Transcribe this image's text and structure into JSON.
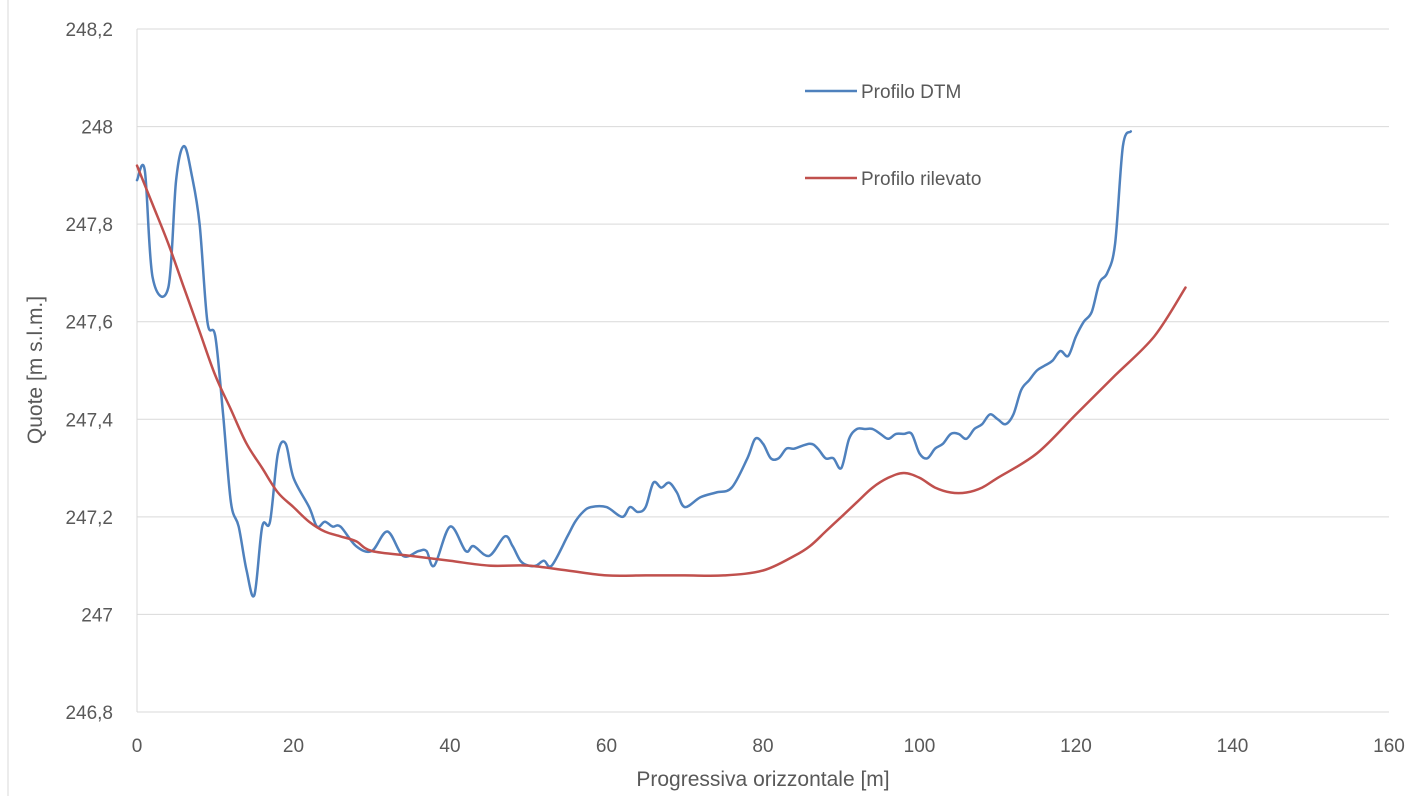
{
  "chart_data": {
    "type": "line",
    "title": "",
    "xlabel": "Progressiva orizzontale [m]",
    "ylabel": "Quote [m s.l.m.]",
    "xlim": [
      0,
      160
    ],
    "ylim": [
      246.8,
      248.2
    ],
    "x_ticks": [
      0,
      20,
      40,
      60,
      80,
      100,
      120,
      140,
      160
    ],
    "y_ticks": [
      246.8,
      247.0,
      247.2,
      247.4,
      247.6,
      247.8,
      248.0,
      248.2
    ],
    "x_tick_labels": [
      "0",
      "20",
      "40",
      "60",
      "80",
      "100",
      "120",
      "140",
      "160"
    ],
    "y_tick_labels": [
      "246,8",
      "247",
      "247,2",
      "247,4",
      "247,6",
      "247,8",
      "248",
      "248,2"
    ],
    "grid": "horizontal",
    "legend": "top-right",
    "series": [
      {
        "name": "Profilo DTM",
        "color": "#4f81bd",
        "x": [
          0,
          1,
          2,
          4,
          5,
          6,
          7,
          8,
          9,
          10,
          11,
          12,
          13,
          14,
          15,
          16,
          17,
          18,
          19,
          20,
          22,
          23,
          24,
          25,
          26,
          28,
          30,
          32,
          34,
          36,
          37,
          38,
          40,
          42,
          43,
          45,
          47,
          48,
          49,
          50,
          51,
          52,
          53,
          55,
          56,
          57,
          58,
          60,
          62,
          63,
          64,
          65,
          66,
          67,
          68,
          69,
          70,
          72,
          74,
          76,
          78,
          79,
          80,
          81,
          82,
          83,
          84,
          86,
          87,
          88,
          89,
          90,
          91,
          92,
          93,
          94,
          95,
          96,
          97,
          98,
          99,
          100,
          101,
          102,
          103,
          104,
          105,
          106,
          107,
          108,
          109,
          110,
          111,
          112,
          113,
          114,
          115,
          116,
          117,
          118,
          119,
          120,
          121,
          122,
          123,
          124,
          125,
          126,
          127
        ],
        "values": [
          247.89,
          247.91,
          247.69,
          247.67,
          247.89,
          247.96,
          247.9,
          247.8,
          247.6,
          247.57,
          247.41,
          247.23,
          247.18,
          247.09,
          247.04,
          247.18,
          247.19,
          247.33,
          247.35,
          247.28,
          247.22,
          247.18,
          247.19,
          247.18,
          247.18,
          247.14,
          247.13,
          247.17,
          247.12,
          247.13,
          247.13,
          247.1,
          247.18,
          247.13,
          247.14,
          247.12,
          247.16,
          247.14,
          247.11,
          247.1,
          247.1,
          247.11,
          247.1,
          247.16,
          247.19,
          247.21,
          247.22,
          247.22,
          247.2,
          247.22,
          247.21,
          247.22,
          247.27,
          247.26,
          247.27,
          247.25,
          247.22,
          247.24,
          247.25,
          247.26,
          247.32,
          247.36,
          247.35,
          247.32,
          247.32,
          247.34,
          247.34,
          247.35,
          247.34,
          247.32,
          247.32,
          247.3,
          247.36,
          247.38,
          247.38,
          247.38,
          247.37,
          247.36,
          247.37,
          247.37,
          247.37,
          247.33,
          247.32,
          247.34,
          247.35,
          247.37,
          247.37,
          247.36,
          247.38,
          247.39,
          247.41,
          247.4,
          247.39,
          247.41,
          247.46,
          247.48,
          247.5,
          247.51,
          247.52,
          247.54,
          247.53,
          247.57,
          247.6,
          247.62,
          247.68,
          247.7,
          247.76,
          247.96,
          247.99
        ]
      },
      {
        "name": "Profilo rilevato",
        "color": "#c0504d",
        "x": [
          0,
          2,
          4,
          6,
          8,
          10,
          12,
          14,
          16,
          18,
          20,
          22,
          24,
          26,
          28,
          30,
          35,
          40,
          45,
          50,
          55,
          60,
          65,
          70,
          75,
          80,
          84,
          86,
          88,
          90,
          92,
          94,
          96,
          98,
          100,
          102,
          104,
          106,
          108,
          110,
          115,
          120,
          125,
          130,
          134
        ],
        "values": [
          247.92,
          247.84,
          247.76,
          247.67,
          247.58,
          247.49,
          247.42,
          247.35,
          247.3,
          247.25,
          247.22,
          247.19,
          247.17,
          247.16,
          247.15,
          247.13,
          247.12,
          247.11,
          247.1,
          247.1,
          247.09,
          247.08,
          247.08,
          247.08,
          247.08,
          247.09,
          247.12,
          247.14,
          247.17,
          247.2,
          247.23,
          247.26,
          247.28,
          247.29,
          247.28,
          247.26,
          247.25,
          247.25,
          247.26,
          247.28,
          247.33,
          247.41,
          247.49,
          247.57,
          247.67
        ]
      }
    ]
  }
}
